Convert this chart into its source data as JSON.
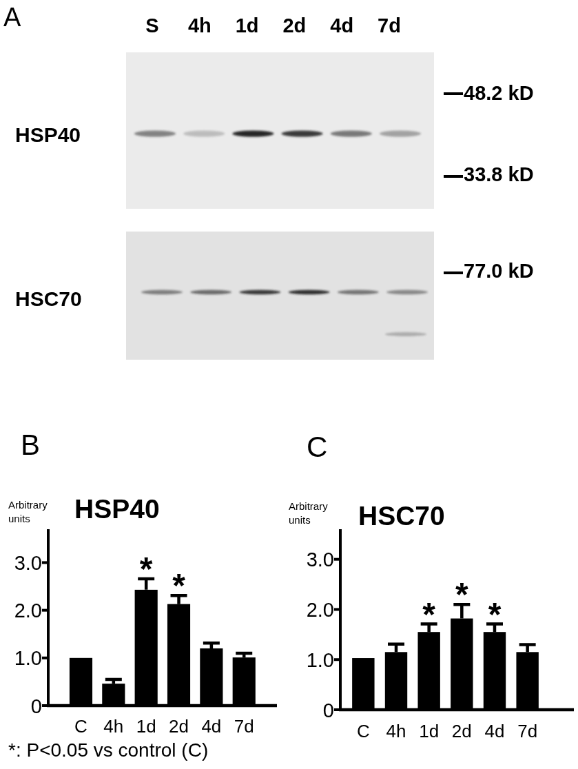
{
  "chart_data": [
    {
      "type": "other",
      "categories": [
        "S",
        "4h",
        "1d",
        "2d",
        "4d",
        "7d"
      ],
      "annotations": [
        "A",
        "HSP40",
        "HSC70",
        "48.2 kD",
        "33.8 kD",
        "77.0 kD"
      ]
    },
    {
      "type": "bar",
      "title": "HSP40",
      "ylabel": "Arbitrary units",
      "categories": [
        "C",
        "4h",
        "1d",
        "2d",
        "4d",
        "7d"
      ],
      "values": [
        1.0,
        0.46,
        2.43,
        2.13,
        1.2,
        1.01
      ],
      "errors": [
        null,
        0.09,
        0.23,
        0.18,
        0.11,
        0.09
      ],
      "color": "#000000",
      "ylim": [
        0,
        3.7
      ],
      "yticks": [
        0,
        {
          "value": 1,
          "label": "1.0"
        },
        {
          "value": 2,
          "label": "2.0"
        },
        {
          "value": 3,
          "label": "3.0"
        }
      ],
      "annotations": [
        "B",
        {
          "text": "*",
          "x": "1d",
          "y": 2.66
        },
        {
          "text": "*",
          "x": "2d",
          "y": 2.31
        },
        "*: P<0.05 vs control (C)"
      ]
    },
    {
      "type": "bar",
      "title": "HSC70",
      "ylabel": "Arbitrary units",
      "categories": [
        "C",
        "4h",
        "1d",
        "2d",
        "4d",
        "7d"
      ],
      "values": [
        1.03,
        1.15,
        1.55,
        1.82,
        1.55,
        1.15
      ],
      "errors": [
        null,
        0.16,
        0.16,
        0.28,
        0.16,
        0.15
      ],
      "color": "#000000",
      "ylim": [
        0,
        3.6
      ],
      "yticks": [
        0,
        {
          "value": 1,
          "label": "1.0"
        },
        {
          "value": 2,
          "label": "2.0"
        },
        {
          "value": 3,
          "label": "3.0"
        }
      ],
      "annotations": [
        "C",
        {
          "text": "*",
          "x": "1d",
          "y": 1.71
        },
        {
          "text": "*",
          "x": "2d",
          "y": 2.1
        },
        {
          "text": "*",
          "x": "4d",
          "y": 1.71
        }
      ]
    }
  ]
}
